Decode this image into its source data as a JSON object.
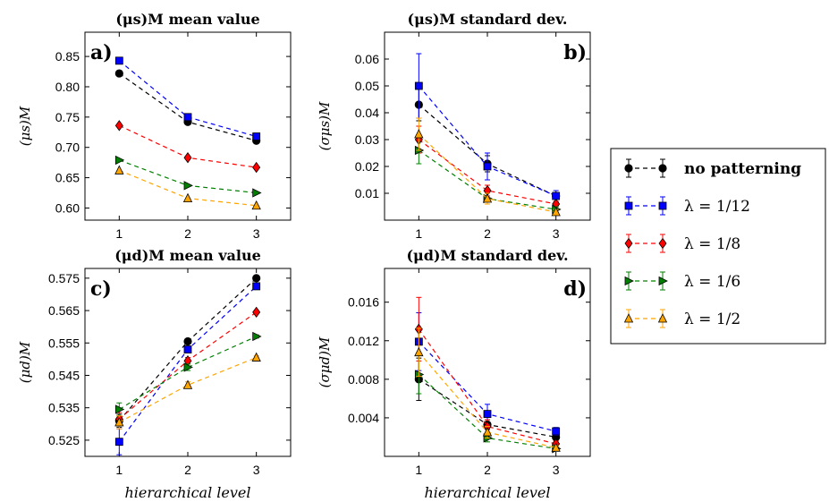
{
  "chart_data": [
    {
      "type": "line",
      "panel_label": "a)",
      "label_pos": "top-left",
      "title": "(μs)M mean value",
      "ylabel": "(μs)M",
      "x": [
        1,
        2,
        3
      ],
      "xlim": [
        0.5,
        3.5
      ],
      "ylim": [
        0.58,
        0.89
      ],
      "yticks": [
        0.6,
        0.65,
        0.7,
        0.75,
        0.8,
        0.85
      ],
      "ytick_labels": [
        "0.60",
        "0.65",
        "0.70",
        "0.75",
        "0.80",
        "0.85"
      ],
      "series": [
        {
          "key": "no_patterning",
          "values": [
            0.822,
            0.742,
            0.711
          ]
        },
        {
          "key": "l12",
          "values": [
            0.843,
            0.75,
            0.718
          ]
        },
        {
          "key": "l8",
          "values": [
            0.736,
            0.683,
            0.667
          ]
        },
        {
          "key": "l6",
          "values": [
            0.679,
            0.637,
            0.625
          ]
        },
        {
          "key": "l2",
          "values": [
            0.662,
            0.616,
            0.604
          ]
        }
      ]
    },
    {
      "type": "line",
      "panel_label": "b)",
      "label_pos": "top-right",
      "title": "(μs)M standard dev.",
      "ylabel": "(σμs)M",
      "x": [
        1,
        2,
        3
      ],
      "xlim": [
        0.5,
        3.5
      ],
      "ylim": [
        0.0,
        0.07
      ],
      "yticks": [
        0.01,
        0.02,
        0.03,
        0.04,
        0.05,
        0.06
      ],
      "ytick_labels": [
        "0.01",
        "0.02",
        "0.03",
        "0.04",
        "0.05",
        "0.06"
      ],
      "series": [
        {
          "key": "no_patterning",
          "values": [
            0.043,
            0.021,
            0.009
          ],
          "err": [
            0.006,
            0.003,
            0.001
          ]
        },
        {
          "key": "l12",
          "values": [
            0.05,
            0.02,
            0.009
          ],
          "err": [
            0.012,
            0.005,
            0.002
          ]
        },
        {
          "key": "l8",
          "values": [
            0.03,
            0.011,
            0.006
          ],
          "err": [
            0.005,
            0.002,
            0.001
          ]
        },
        {
          "key": "l6",
          "values": [
            0.026,
            0.008,
            0.004
          ],
          "err": [
            0.005,
            0.002,
            0.001
          ]
        },
        {
          "key": "l2",
          "values": [
            0.032,
            0.008,
            0.003
          ],
          "err": [
            0.006,
            0.002,
            0.001
          ]
        }
      ]
    },
    {
      "type": "line",
      "panel_label": "c)",
      "label_pos": "top-left",
      "title": "(μd)M mean value",
      "ylabel": "(μd)M",
      "x": [
        1,
        2,
        3
      ],
      "xlim": [
        0.5,
        3.5
      ],
      "ylim": [
        0.52,
        0.578
      ],
      "yticks": [
        0.525,
        0.535,
        0.545,
        0.555,
        0.565,
        0.575
      ],
      "ytick_labels": [
        "0.525",
        "0.535",
        "0.545",
        "0.555",
        "0.565",
        "0.575"
      ],
      "series": [
        {
          "key": "no_patterning",
          "values": [
            0.531,
            0.5555,
            0.575
          ],
          "err": [
            0.002,
            0.0005,
            0.0003
          ]
        },
        {
          "key": "l12",
          "values": [
            0.5245,
            0.553,
            0.5725
          ],
          "err": [
            0.004,
            0.001,
            0.0005
          ]
        },
        {
          "key": "l8",
          "values": [
            0.5315,
            0.5495,
            0.5645
          ],
          "err": [
            0.002,
            0.001,
            0.0005
          ]
        },
        {
          "key": "l6",
          "values": [
            0.5345,
            0.5475,
            0.557
          ],
          "err": [
            0.002,
            0.001,
            0.0005
          ]
        },
        {
          "key": "l2",
          "values": [
            0.5305,
            0.542,
            0.5505
          ],
          "err": [
            0.002,
            0.001,
            0.0005
          ]
        }
      ]
    },
    {
      "type": "line",
      "panel_label": "d)",
      "label_pos": "top-right",
      "title": "(μd)M standard dev.",
      "ylabel": "(σμd)M",
      "xlabel": "hierarchical level",
      "x": [
        1,
        2,
        3
      ],
      "xlim": [
        0.5,
        3.5
      ],
      "ylim": [
        0.0,
        0.0195
      ],
      "yticks": [
        0.004,
        0.008,
        0.012,
        0.016
      ],
      "ytick_labels": [
        "0.004",
        "0.008",
        "0.012",
        "0.016"
      ],
      "series": [
        {
          "key": "no_patterning",
          "values": [
            0.008,
            0.0033,
            0.002
          ],
          "err": [
            0.0022,
            0.0005,
            0.0004
          ]
        },
        {
          "key": "l12",
          "values": [
            0.0119,
            0.0044,
            0.0026
          ],
          "err": [
            0.003,
            0.001,
            0.0004
          ]
        },
        {
          "key": "l8",
          "values": [
            0.0132,
            0.0031,
            0.0013
          ],
          "err": [
            0.0033,
            0.0007,
            0.0003
          ]
        },
        {
          "key": "l6",
          "values": [
            0.0085,
            0.0019,
            0.0008
          ],
          "err": [
            0.002,
            0.0004,
            0.0002
          ]
        },
        {
          "key": "l2",
          "values": [
            0.0108,
            0.0025,
            0.0009
          ],
          "err": [
            0.0025,
            0.0006,
            0.0002
          ]
        }
      ]
    }
  ],
  "xtick_labels": [
    "1",
    "2",
    "3"
  ],
  "xlabel": "hierarchical level",
  "legend": {
    "placement": "right",
    "items": [
      {
        "key": "no_patterning",
        "label": "no patterning",
        "color": "#000000",
        "marker": "circle"
      },
      {
        "key": "l12",
        "label": "λ = 1/12",
        "color": "#0000ff",
        "marker": "square"
      },
      {
        "key": "l8",
        "label": "λ = 1/8",
        "color": "#ff0000",
        "marker": "diamond"
      },
      {
        "key": "l6",
        "label": "λ = 1/6",
        "color": "#008000",
        "marker": "triangle-right"
      },
      {
        "key": "l2",
        "label": "λ = 1/2",
        "color": "#ffa500",
        "marker": "triangle-up"
      }
    ]
  }
}
